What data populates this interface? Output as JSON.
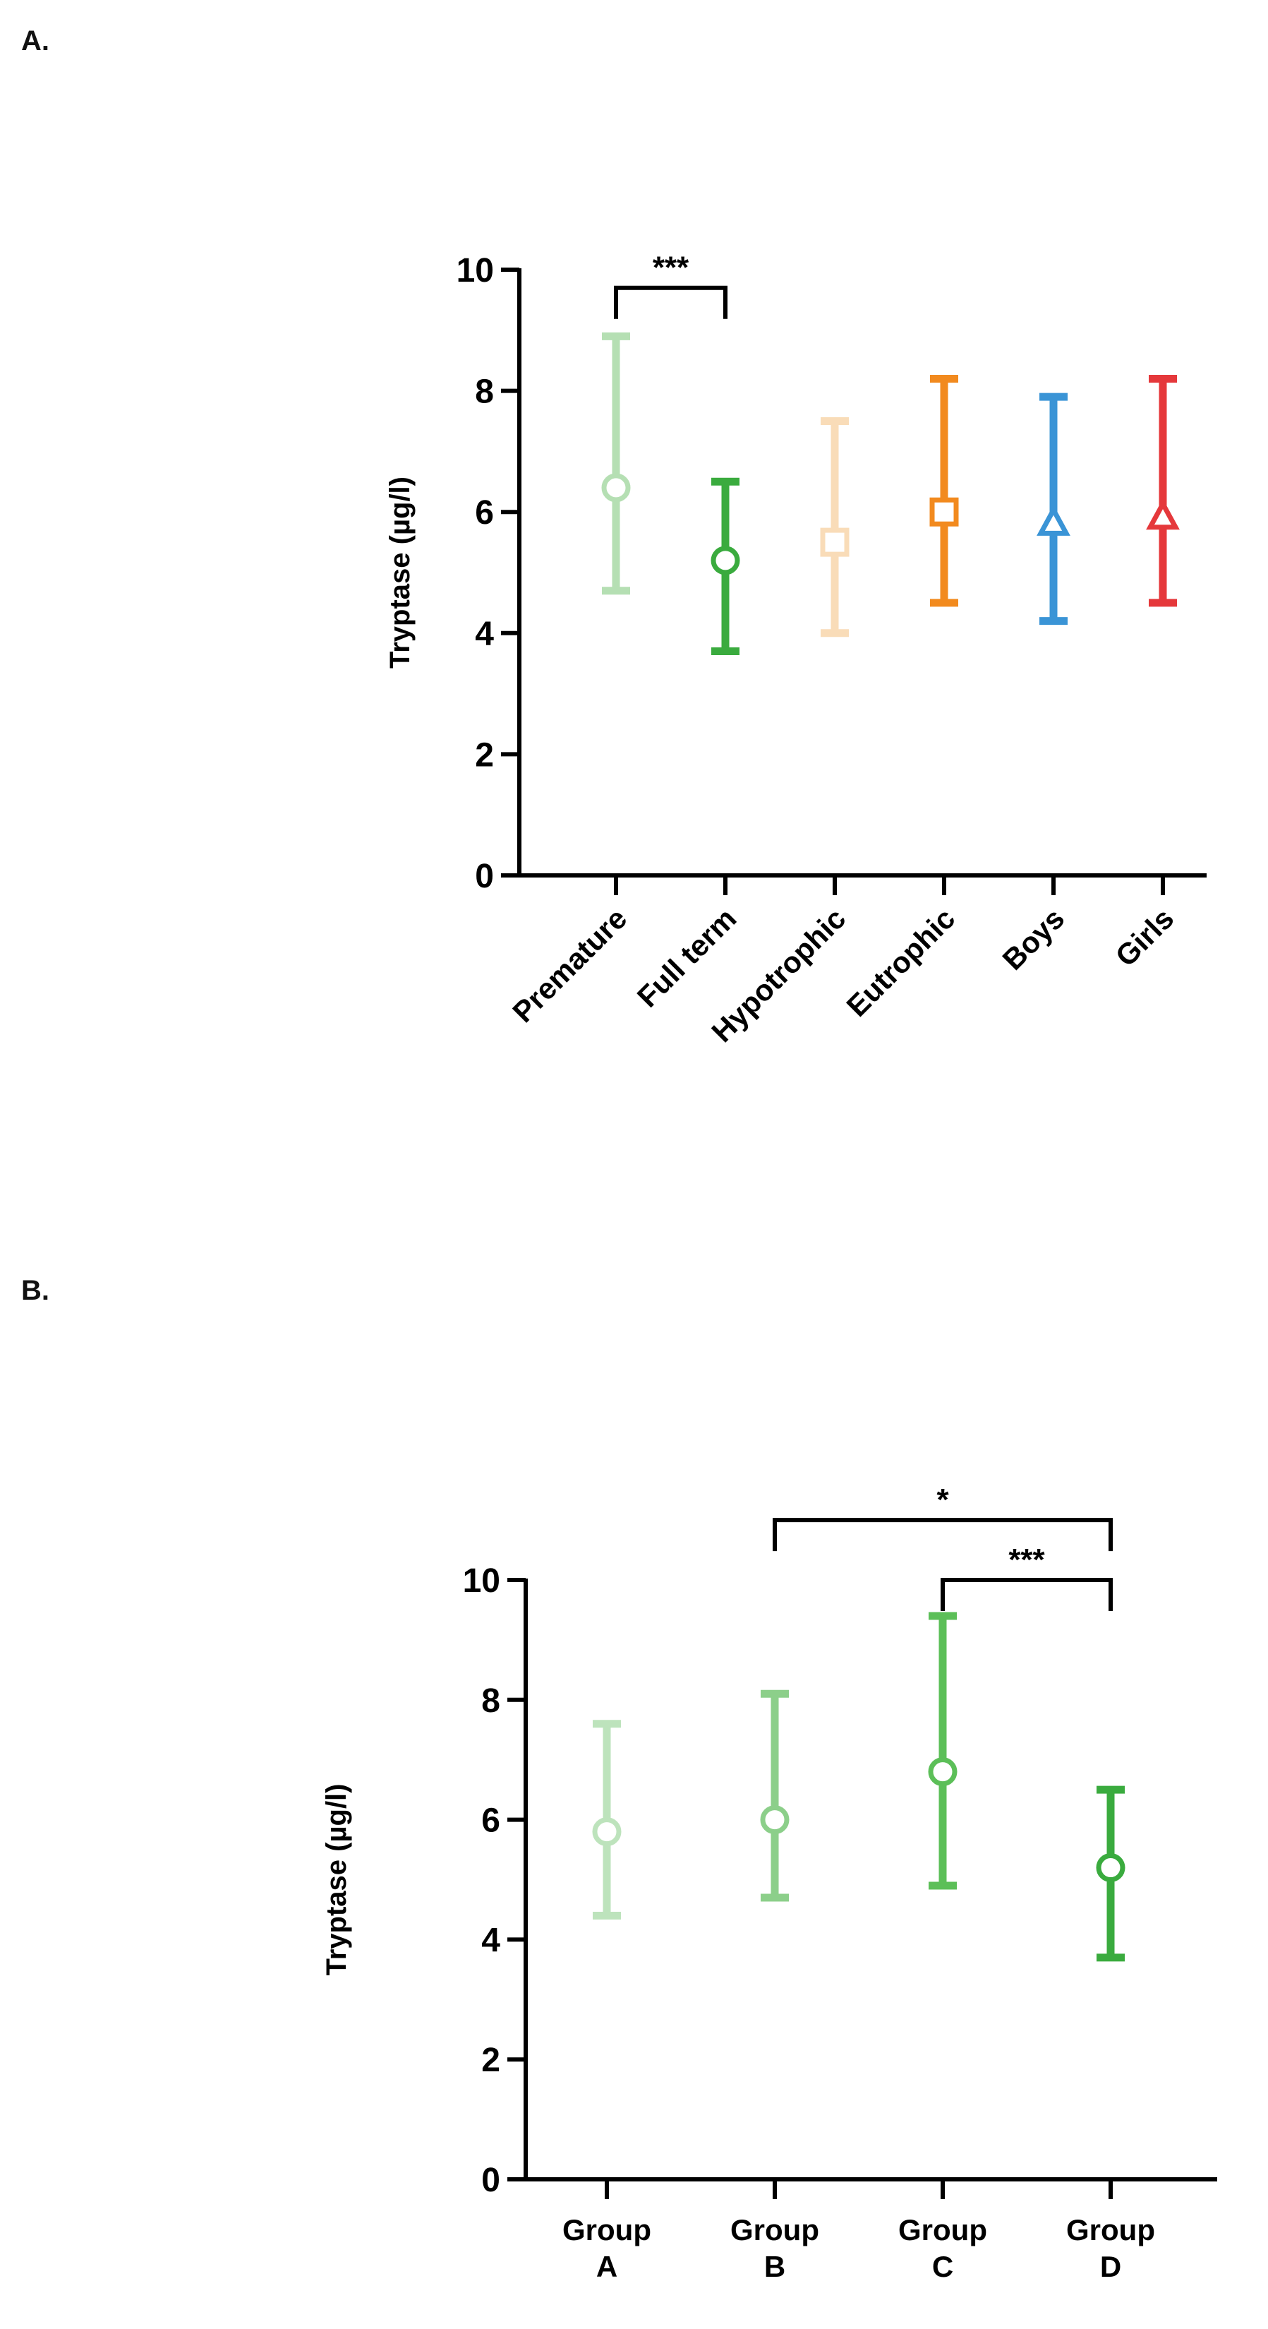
{
  "panels": {
    "a_label": "A.",
    "b_label": "B."
  },
  "chart_data": [
    {
      "type": "scatter",
      "title": "",
      "xlabel": "",
      "ylabel": "Tryptase (µg/l)",
      "ylim": [
        0,
        10
      ],
      "yticks": [
        "0",
        "2",
        "4",
        "6",
        "8",
        "10"
      ],
      "categories": [
        "Premature",
        "Full term",
        "Hypotrophic",
        "Eutrophic",
        "Boys",
        "Girls"
      ],
      "points": [
        {
          "name": "Premature",
          "value": 6.4,
          "low": 4.7,
          "high": 8.9,
          "color": "#b5dfb3",
          "marker": "circle"
        },
        {
          "name": "Full term",
          "value": 5.2,
          "low": 3.7,
          "high": 6.5,
          "color": "#3aab3e",
          "marker": "circle"
        },
        {
          "name": "Hypotrophic",
          "value": 5.5,
          "low": 4.0,
          "high": 7.5,
          "color": "#f9dcb8",
          "marker": "square"
        },
        {
          "name": "Eutrophic",
          "value": 6.0,
          "low": 4.5,
          "high": 8.2,
          "color": "#f28a1e",
          "marker": "square"
        },
        {
          "name": "Boys",
          "value": 5.8,
          "low": 4.2,
          "high": 7.9,
          "color": "#3a94d6",
          "marker": "triangle"
        },
        {
          "name": "Girls",
          "value": 5.9,
          "low": 4.5,
          "high": 8.2,
          "color": "#e5383b",
          "marker": "triangle"
        }
      ],
      "significance": [
        {
          "from": 0,
          "to": 1,
          "label": "***",
          "level": 9.7
        }
      ]
    },
    {
      "type": "scatter",
      "title": "",
      "xlabel": "",
      "ylabel": "Tryptase (µg/l)",
      "ylim": [
        0,
        10
      ],
      "yticks": [
        "0",
        "2",
        "4",
        "6",
        "8",
        "10"
      ],
      "categories": [
        [
          "Group",
          "A"
        ],
        [
          "Group",
          "B"
        ],
        [
          "Group",
          "C"
        ],
        [
          "Group",
          "D"
        ]
      ],
      "points": [
        {
          "name": "Group A",
          "value": 5.8,
          "low": 4.4,
          "high": 7.6,
          "color": "#bde3bc",
          "marker": "circle"
        },
        {
          "name": "Group B",
          "value": 6.0,
          "low": 4.7,
          "high": 8.1,
          "color": "#8ccf8a",
          "marker": "circle"
        },
        {
          "name": "Group C",
          "value": 6.8,
          "low": 4.9,
          "high": 9.4,
          "color": "#5cbf58",
          "marker": "circle"
        },
        {
          "name": "Group D",
          "value": 5.2,
          "low": 3.7,
          "high": 6.5,
          "color": "#3aab3e",
          "marker": "circle"
        }
      ],
      "significance": [
        {
          "from": 1,
          "to": 3,
          "label": "*",
          "level": 11.0
        },
        {
          "from": 2,
          "to": 3,
          "label": "***",
          "level": 10.0
        }
      ]
    }
  ]
}
